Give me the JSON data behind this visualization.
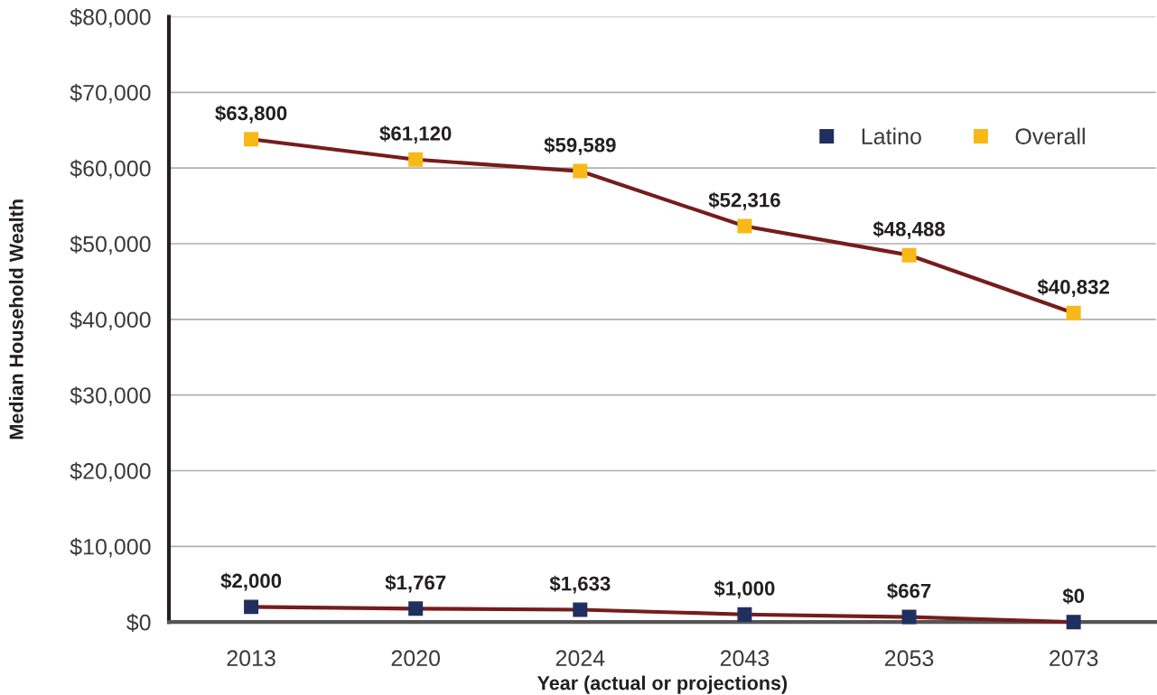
{
  "chart_data": {
    "type": "line",
    "xlabel": "Year (actual or projections)",
    "ylabel": "Median Household Wealth",
    "categories": [
      "2013",
      "2020",
      "2024",
      "2043",
      "2053",
      "2073"
    ],
    "series": [
      {
        "name": "Latino",
        "color": "#761c1c",
        "colors": [
          "#1f2f5f",
          "#1f2f5f",
          "#1f2f5f",
          "#1f2f5f",
          "#1f2f5f",
          "#1f2f5f"
        ],
        "values": [
          2000,
          1767,
          1633,
          1000,
          667,
          0
        ],
        "value_labels": [
          "$2,000",
          "$1,767",
          "$1,633",
          "$1,000",
          "$667",
          "$0"
        ]
      },
      {
        "name": "Overall",
        "color": "#761c1c",
        "colors": [
          "#f7b918",
          "#f7b918",
          "#f7b918",
          "#f7b918",
          "#f7b918",
          "#f7b918"
        ],
        "values": [
          63800,
          61120,
          59589,
          52316,
          48488,
          40832
        ],
        "value_labels": [
          "$63,800",
          "$61,120",
          "$59,589",
          "$52,316",
          "$48,488",
          "$40,832"
        ]
      }
    ],
    "ylim": [
      0,
      80000
    ],
    "yticks": [
      {
        "value": 0,
        "label": "$0"
      },
      {
        "value": 10000,
        "label": "$10,000"
      },
      {
        "value": 20000,
        "label": "$20,000"
      },
      {
        "value": 30000,
        "label": "$30,000"
      },
      {
        "value": 40000,
        "label": "$40,000"
      },
      {
        "value": 50000,
        "label": "$50,000"
      },
      {
        "value": 60000,
        "label": "$60,000"
      },
      {
        "value": 70000,
        "label": "$70,000"
      },
      {
        "value": 80000,
        "label": "$80,000"
      }
    ],
    "grid": "y",
    "legend": "top right",
    "marker": "square",
    "line_style": "solid"
  }
}
